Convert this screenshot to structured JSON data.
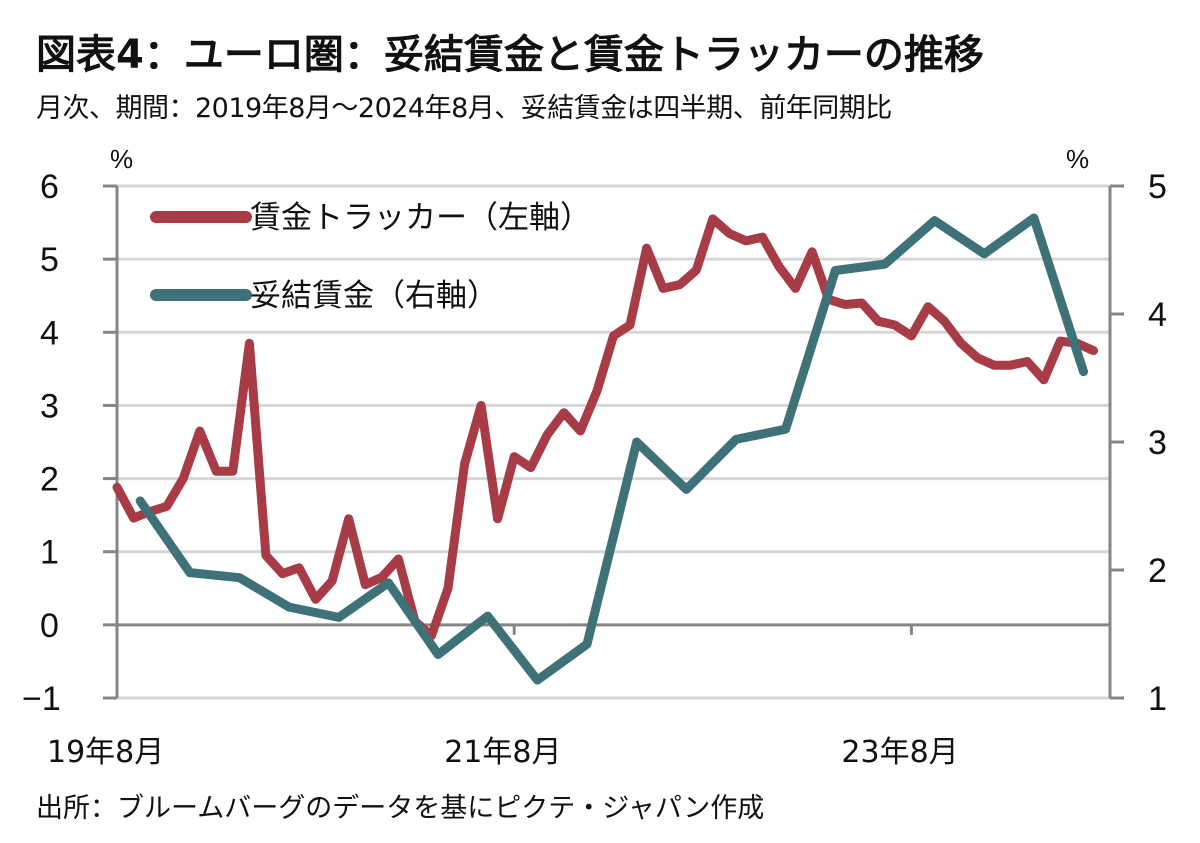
{
  "header": {
    "title": "図表4：ユーロ圏：妥結賃金と賃金トラッカーの推移",
    "subtitle": "月次、期間：2019年8月～2024年8月、妥結賃金は四半期、前年同期比"
  },
  "footer": {
    "source": "出所：ブルームバーグのデータを基にピクテ・ジャパン作成"
  },
  "chart_data": {
    "type": "line",
    "title": "図表4：ユーロ圏：妥結賃金と賃金トラッカーの推移",
    "subtitle": "月次、期間：2019年8月～2024年8月、妥結賃金は四半期、前年同期比",
    "x_range": [
      "2019-08",
      "2024-08"
    ],
    "x_tick_labels": [
      {
        "label": "19年8月",
        "month_index": 0
      },
      {
        "label": "21年8月",
        "month_index": 24
      },
      {
        "label": "23年8月",
        "month_index": 48
      }
    ],
    "left_axis": {
      "unit": "%",
      "ylim": [
        -1,
        6
      ],
      "ticks": [
        "-1",
        "0",
        "1",
        "2",
        "3",
        "4",
        "5",
        "6"
      ]
    },
    "right_axis": {
      "unit": "%",
      "ylim": [
        1,
        5
      ],
      "ticks": [
        "1",
        "2",
        "3",
        "4",
        "5"
      ]
    },
    "grid": true,
    "legend_position": "top-left",
    "series": [
      {
        "name": "賃金トラッカー（左軸）",
        "axis": "left",
        "color": "#a83c46",
        "frequency": "monthly",
        "start_month_index": 0,
        "values": [
          1.88,
          1.46,
          1.55,
          1.62,
          2.0,
          2.65,
          2.1,
          2.1,
          3.85,
          0.95,
          0.7,
          0.78,
          0.35,
          0.6,
          1.45,
          0.55,
          0.65,
          0.9,
          0.05,
          -0.15,
          0.5,
          2.2,
          3.0,
          1.45,
          2.3,
          2.15,
          2.6,
          2.9,
          2.65,
          3.2,
          3.95,
          4.1,
          5.15,
          4.6,
          4.65,
          4.85,
          5.55,
          5.35,
          5.25,
          5.3,
          4.9,
          4.6,
          5.1,
          4.45,
          4.38,
          4.4,
          4.15,
          4.1,
          3.95,
          4.35,
          4.15,
          3.85,
          3.65,
          3.55,
          3.55,
          3.6,
          3.35,
          3.88,
          3.85,
          3.75
        ]
      },
      {
        "name": "妥結賃金（右軸）",
        "axis": "right",
        "color": "#3e7178",
        "frequency": "quarterly",
        "start_month_index": 1.4,
        "step_months": 3,
        "values": [
          2.54,
          1.98,
          1.94,
          1.71,
          1.63,
          1.9,
          1.34,
          1.64,
          1.14,
          1.42,
          3.0,
          2.63,
          3.02,
          3.1,
          4.34,
          4.39,
          4.73,
          4.47,
          4.75,
          3.55
        ]
      }
    ]
  }
}
